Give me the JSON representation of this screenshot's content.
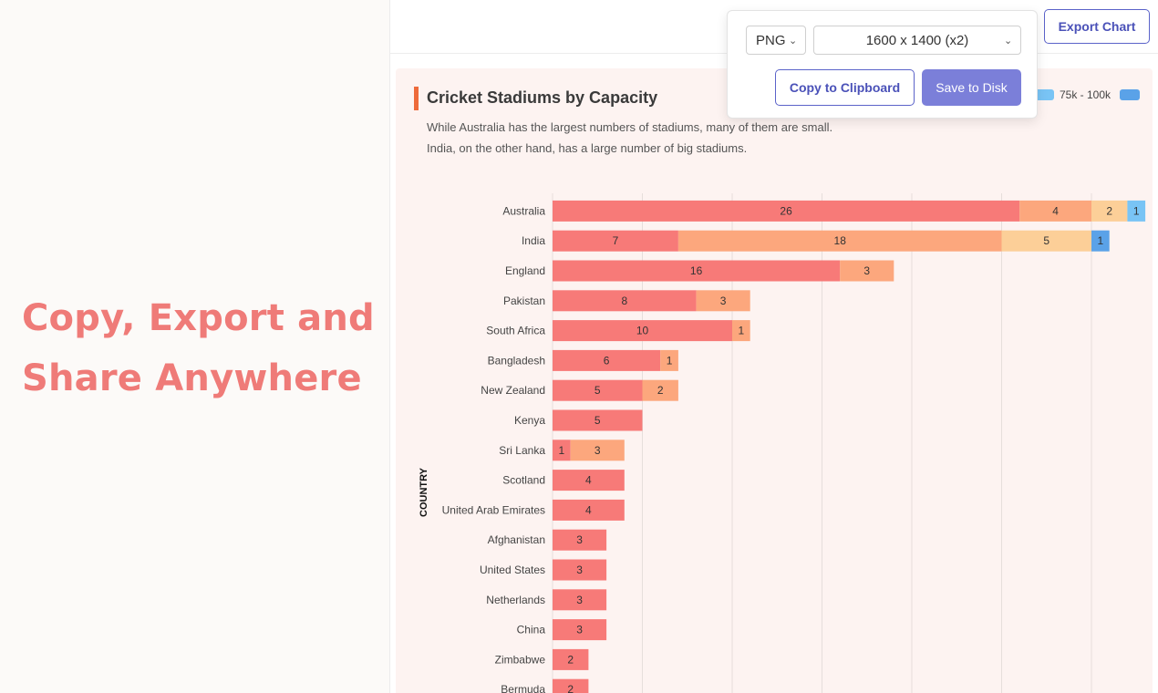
{
  "promo": {
    "line1": "Copy, Export and",
    "line2": "Share Anywhere"
  },
  "toolbar": {
    "export_label": "Export Chart"
  },
  "export_popover": {
    "format": "PNG",
    "size": "1600 x 1400 (x2)",
    "copy_label": "Copy to Clipboard",
    "save_label": "Save to Disk"
  },
  "legend_partial": [
    {
      "label": "75k - 100k",
      "color": "#79c4f5"
    },
    {
      "label": "",
      "color": "#5aa2e8"
    }
  ],
  "chart_data": {
    "type": "bar",
    "orientation": "horizontal",
    "stacked": true,
    "title": "Cricket Stadiums by Capacity",
    "subtitle": "While Australia has the largest numbers of stadiums, many of them are small.\n India, on the other hand, has a large number of big stadiums.",
    "ylabel": "COUNTRY",
    "xlim": [
      0,
      33
    ],
    "grid": true,
    "categories": [
      "Australia",
      "India",
      "England",
      "Pakistan",
      "South Africa",
      "Bangladesh",
      "New Zealand",
      "Kenya",
      "Sri Lanka",
      "Scotland",
      "United Arab Emirates",
      "Afghanistan",
      "United States",
      "Netherlands",
      "China",
      "Zimbabwe",
      "Bermuda"
    ],
    "series": [
      {
        "color": "#f77a78",
        "values": [
          26,
          7,
          16,
          8,
          10,
          6,
          5,
          5,
          1,
          4,
          4,
          3,
          3,
          3,
          3,
          2,
          2
        ]
      },
      {
        "color": "#fca77d",
        "values": [
          4,
          18,
          3,
          3,
          1,
          1,
          2,
          0,
          3,
          0,
          0,
          0,
          0,
          0,
          0,
          0,
          0
        ]
      },
      {
        "color": "#fccf98",
        "values": [
          2,
          5,
          0,
          0,
          0,
          0,
          0,
          0,
          0,
          0,
          0,
          0,
          0,
          0,
          0,
          0,
          0
        ]
      },
      {
        "name": "75k - 100k",
        "color": "#79c4f5",
        "values": [
          1,
          0,
          0,
          0,
          0,
          0,
          0,
          0,
          0,
          0,
          0,
          0,
          0,
          0,
          0,
          0,
          0
        ]
      },
      {
        "color": "#5aa2e8",
        "values": [
          0,
          1,
          0,
          0,
          0,
          0,
          0,
          0,
          0,
          0,
          0,
          0,
          0,
          0,
          0,
          0,
          0
        ]
      }
    ]
  }
}
